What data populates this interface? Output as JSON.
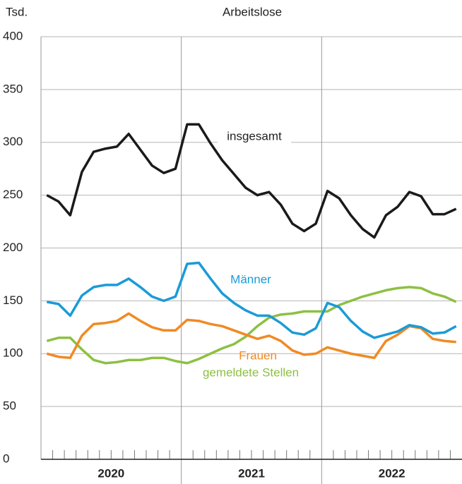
{
  "chart_data": {
    "type": "line",
    "title": "Arbeitslose",
    "y_label": "Tsd.",
    "categories": [
      null,
      null,
      null,
      null,
      null,
      null,
      null,
      null,
      null,
      null,
      null,
      null,
      null,
      null,
      null,
      null,
      null,
      null,
      null,
      null,
      null,
      null,
      null,
      null,
      null,
      null,
      null,
      null,
      null,
      null,
      null,
      null,
      null,
      null,
      null,
      null
    ],
    "year_labels": [
      "2020",
      "2021",
      "2022"
    ],
    "series": [
      {
        "name": "insgesamt",
        "color": "#1a1a1a",
        "values": [
          250,
          244,
          231,
          272,
          291,
          294,
          296,
          308,
          293,
          278,
          271,
          275,
          317,
          317,
          299,
          283,
          270,
          257,
          250,
          253,
          241,
          223,
          216,
          223,
          254,
          247,
          231,
          218,
          210,
          231,
          239,
          253,
          249,
          232,
          232,
          237
        ]
      },
      {
        "name": "Männer",
        "color": "#1a9bd7",
        "values": [
          149,
          147,
          136,
          155,
          163,
          165,
          165,
          171,
          163,
          154,
          150,
          154,
          185,
          186,
          171,
          157,
          148,
          141,
          136,
          136,
          129,
          120,
          118,
          124,
          148,
          144,
          131,
          121,
          115,
          118,
          121,
          127,
          125,
          119,
          120,
          126
        ]
      },
      {
        "name": "Frauen",
        "color": "#f08a24",
        "values": [
          100,
          97,
          96,
          117,
          128,
          129,
          131,
          138,
          131,
          125,
          122,
          122,
          132,
          131,
          128,
          126,
          122,
          118,
          114,
          117,
          112,
          103,
          99,
          100,
          106,
          103,
          100,
          98,
          96,
          112,
          118,
          126,
          124,
          114,
          112,
          111
        ]
      },
      {
        "name": "gemeldete Stellen",
        "color": "#8dc043",
        "values": [
          112,
          115,
          115,
          104,
          94,
          91,
          92,
          94,
          94,
          96,
          96,
          93,
          91,
          95,
          100,
          105,
          109,
          116,
          126,
          134,
          137,
          138,
          140,
          140,
          140,
          146,
          150,
          154,
          157,
          160,
          162,
          163,
          162,
          157,
          154,
          149
        ]
      }
    ],
    "ylim": [
      0,
      400
    ],
    "yticks": [
      0,
      50,
      100,
      150,
      200,
      250,
      300,
      350,
      400
    ],
    "grid": true
  }
}
